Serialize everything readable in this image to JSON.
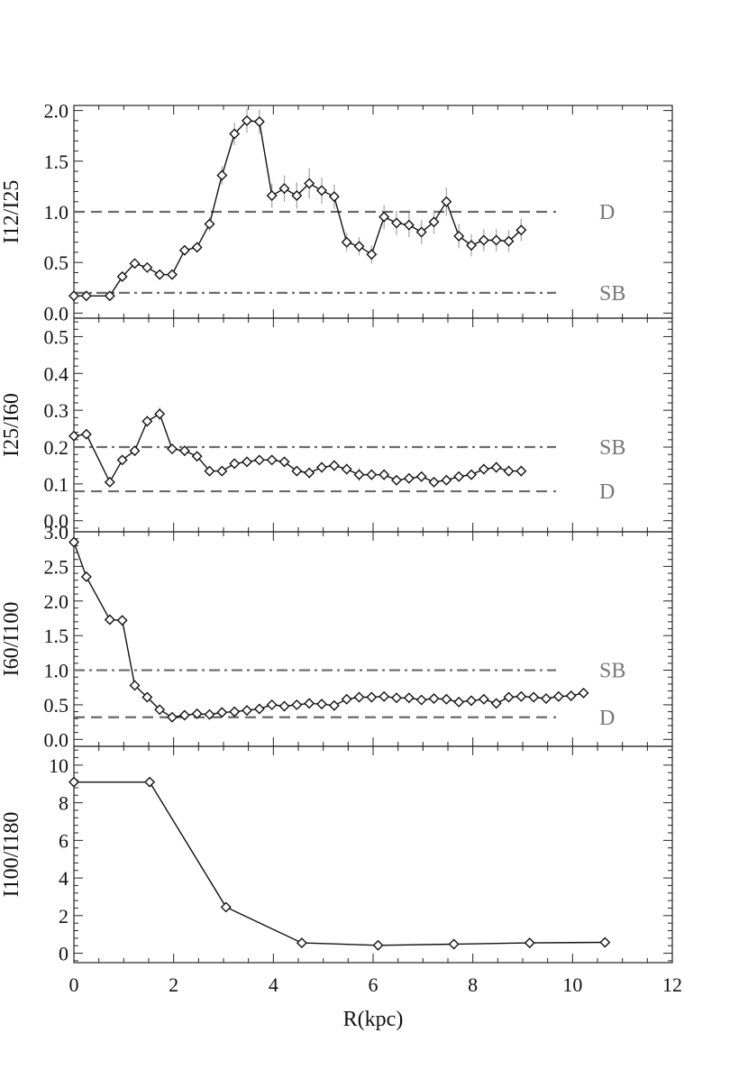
{
  "chart_data": [
    {
      "type": "line",
      "ylabel": "I12/I25",
      "xlim": [
        0,
        12
      ],
      "ylim": [
        -0.05,
        2.05
      ],
      "yticks": [
        "0.0",
        "0.5",
        "1.0",
        "1.5",
        "2.0"
      ],
      "ytick_values": [
        0.0,
        0.5,
        1.0,
        1.5,
        2.0
      ],
      "x_tick_labels_shown": false,
      "series": [
        {
          "x": [
            0.0,
            0.25,
            0.72,
            0.97,
            1.22,
            1.47,
            1.72,
            1.97,
            2.22,
            2.47,
            2.72,
            2.97,
            3.22,
            3.47,
            3.72,
            3.97,
            4.22,
            4.47,
            4.72,
            4.97,
            5.22,
            5.47,
            5.72,
            5.97,
            6.22,
            6.47,
            6.72,
            6.97,
            7.22,
            7.47,
            7.72,
            7.97,
            8.22,
            8.47,
            8.72,
            8.97
          ],
          "y": [
            0.17,
            0.17,
            0.17,
            0.36,
            0.49,
            0.45,
            0.38,
            0.38,
            0.62,
            0.65,
            0.88,
            1.36,
            1.77,
            1.9,
            1.89,
            1.16,
            1.23,
            1.16,
            1.28,
            1.21,
            1.15,
            0.7,
            0.66,
            0.58,
            0.95,
            0.89,
            0.87,
            0.8,
            0.9,
            1.1,
            0.76,
            0.67,
            0.72,
            0.72,
            0.71,
            0.82
          ],
          "yerr": [
            0.0,
            0.0,
            0.0,
            0.03,
            0.03,
            0.03,
            0.03,
            0.03,
            0.05,
            0.05,
            0.07,
            0.09,
            0.11,
            0.12,
            0.12,
            0.12,
            0.13,
            0.13,
            0.15,
            0.13,
            0.12,
            0.09,
            0.09,
            0.09,
            0.12,
            0.12,
            0.12,
            0.12,
            0.12,
            0.14,
            0.12,
            0.11,
            0.11,
            0.11,
            0.11,
            0.11
          ]
        }
      ],
      "reference_lines": [
        {
          "label": "D",
          "y": 1.0,
          "style": "dashed"
        },
        {
          "label": "SB",
          "y": 0.2,
          "style": "dash-dot"
        }
      ]
    },
    {
      "type": "line",
      "ylabel": "I25/I60",
      "xlim": [
        0,
        12
      ],
      "ylim": [
        -0.03,
        0.55
      ],
      "yticks": [
        "0.0",
        "0.1",
        "0.2",
        "0.3",
        "0.4",
        "0.5"
      ],
      "ytick_values": [
        0.0,
        0.1,
        0.2,
        0.3,
        0.4,
        0.5
      ],
      "x_tick_labels_shown": false,
      "series": [
        {
          "x": [
            0.0,
            0.25,
            0.72,
            0.97,
            1.22,
            1.47,
            1.72,
            1.97,
            2.22,
            2.47,
            2.72,
            2.97,
            3.22,
            3.47,
            3.72,
            3.97,
            4.22,
            4.47,
            4.72,
            4.97,
            5.22,
            5.47,
            5.72,
            5.97,
            6.22,
            6.47,
            6.72,
            6.97,
            7.22,
            7.47,
            7.72,
            7.97,
            8.22,
            8.47,
            8.72,
            8.97
          ],
          "y": [
            0.23,
            0.235,
            0.105,
            0.165,
            0.19,
            0.27,
            0.29,
            0.195,
            0.19,
            0.175,
            0.135,
            0.135,
            0.155,
            0.16,
            0.165,
            0.165,
            0.16,
            0.135,
            0.13,
            0.145,
            0.15,
            0.14,
            0.125,
            0.125,
            0.125,
            0.11,
            0.115,
            0.12,
            0.105,
            0.11,
            0.12,
            0.125,
            0.14,
            0.145,
            0.135,
            0.135
          ],
          "yerr": [
            0.01,
            0.01,
            0.01,
            0.012,
            0.012,
            0.015,
            0.018,
            0.012,
            0.012,
            0.012,
            0.01,
            0.01,
            0.01,
            0.01,
            0.01,
            0.012,
            0.012,
            0.012,
            0.015,
            0.015,
            0.015,
            0.015,
            0.018,
            0.015,
            0.015,
            0.012,
            0.012,
            0.012,
            0.012,
            0.012,
            0.012,
            0.012,
            0.015,
            0.015,
            0.015,
            0.015
          ]
        }
      ],
      "reference_lines": [
        {
          "label": "SB",
          "y": 0.2,
          "style": "dash-dot"
        },
        {
          "label": "D",
          "y": 0.08,
          "style": "dashed"
        }
      ]
    },
    {
      "type": "line",
      "ylabel": "I60/I100",
      "xlim": [
        0,
        12
      ],
      "ylim": [
        -0.1,
        3.0
      ],
      "yticks": [
        "0.0",
        "0.5",
        "1.0",
        "1.5",
        "2.0",
        "2.5",
        "3.0"
      ],
      "ytick_values": [
        0.0,
        0.5,
        1.0,
        1.5,
        2.0,
        2.5,
        3.0
      ],
      "x_tick_labels_shown": false,
      "series": [
        {
          "x": [
            0.0,
            0.25,
            0.72,
            0.97,
            1.22,
            1.47,
            1.72,
            1.97,
            2.22,
            2.47,
            2.72,
            2.97,
            3.22,
            3.47,
            3.72,
            3.97,
            4.22,
            4.47,
            4.72,
            4.97,
            5.22,
            5.47,
            5.72,
            5.97,
            6.22,
            6.47,
            6.72,
            6.97,
            7.22,
            7.47,
            7.72,
            7.97,
            8.22,
            8.47,
            8.72,
            8.97,
            9.22,
            9.47,
            9.72,
            9.97,
            10.22
          ],
          "y": [
            2.85,
            2.35,
            1.73,
            1.72,
            0.78,
            0.61,
            0.43,
            0.32,
            0.35,
            0.37,
            0.36,
            0.39,
            0.4,
            0.42,
            0.44,
            0.5,
            0.48,
            0.5,
            0.52,
            0.51,
            0.49,
            0.58,
            0.61,
            0.61,
            0.62,
            0.6,
            0.6,
            0.57,
            0.59,
            0.58,
            0.54,
            0.56,
            0.58,
            0.52,
            0.61,
            0.62,
            0.61,
            0.59,
            0.62,
            0.63,
            0.67
          ],
          "yerr": []
        }
      ],
      "reference_lines": [
        {
          "label": "SB",
          "y": 1.0,
          "style": "dash-dot"
        },
        {
          "label": "D",
          "y": 0.32,
          "style": "dashed"
        }
      ]
    },
    {
      "type": "line",
      "ylabel": "I100/I180",
      "xlabel": "R(kpc)",
      "xlim": [
        0,
        12
      ],
      "ylim": [
        -0.5,
        11.0
      ],
      "yticks": [
        "0",
        "2",
        "4",
        "6",
        "8",
        "10"
      ],
      "ytick_values": [
        0,
        2,
        4,
        6,
        8,
        10
      ],
      "xticks": [
        "0",
        "2",
        "4",
        "6",
        "8",
        "10",
        "12"
      ],
      "xtick_values": [
        0,
        2,
        4,
        6,
        8,
        10,
        12
      ],
      "x_tick_labels_shown": true,
      "series": [
        {
          "x": [
            0.0,
            1.52,
            3.05,
            4.57,
            6.1,
            7.62,
            9.14,
            10.65
          ],
          "y": [
            9.1,
            9.1,
            2.45,
            0.55,
            0.42,
            0.48,
            0.55,
            0.58
          ],
          "yerr": []
        }
      ],
      "reference_lines": []
    }
  ]
}
